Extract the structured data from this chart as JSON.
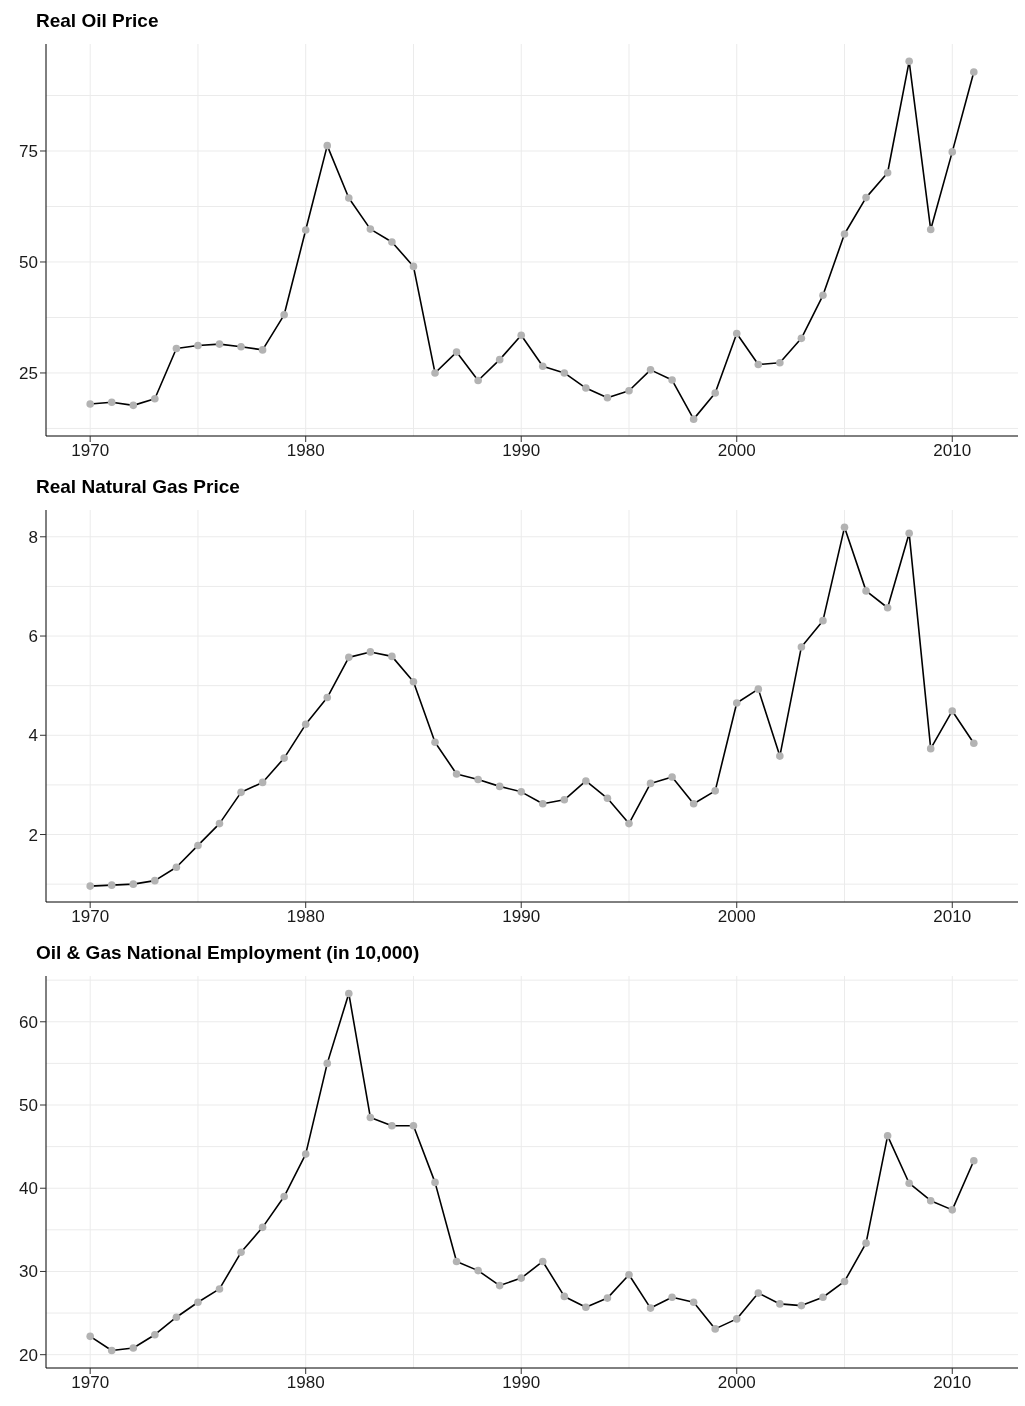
{
  "chart_data": [
    {
      "type": "line",
      "title": "Real Oil Price",
      "x": [
        1970,
        1971,
        1972,
        1973,
        1974,
        1975,
        1976,
        1977,
        1978,
        1979,
        1980,
        1981,
        1982,
        1983,
        1984,
        1985,
        1986,
        1987,
        1988,
        1989,
        1990,
        1991,
        1992,
        1993,
        1994,
        1995,
        1996,
        1997,
        1998,
        1999,
        2000,
        2001,
        2002,
        2003,
        2004,
        2005,
        2006,
        2007,
        2008,
        2009,
        2010,
        2011
      ],
      "values": [
        18.0,
        18.4,
        17.7,
        19.2,
        30.5,
        31.2,
        31.5,
        30.9,
        30.2,
        38.1,
        57.2,
        76.2,
        64.4,
        57.4,
        54.5,
        49.0,
        25.0,
        29.7,
        23.3,
        28.0,
        33.5,
        26.5,
        25.0,
        21.6,
        19.4,
        21.0,
        25.7,
        23.4,
        14.6,
        20.5,
        33.9,
        26.9,
        27.3,
        32.8,
        42.5,
        56.3,
        64.5,
        70.1,
        95.2,
        57.3,
        74.8,
        92.8
      ],
      "color": "#000000",
      "marker": "circle",
      "line_style": "solid",
      "grid": true,
      "xlim": [
        1967.95,
        2013.05
      ],
      "xticks": [
        1970,
        1980,
        1990,
        2000,
        2010
      ],
      "ylim": [
        10.8,
        99.1
      ],
      "yticks": [
        25,
        50,
        75
      ]
    },
    {
      "type": "line",
      "title": "Real Natural Gas Price",
      "x": [
        1970,
        1971,
        1972,
        1973,
        1974,
        1975,
        1976,
        1977,
        1978,
        1979,
        1980,
        1981,
        1982,
        1983,
        1984,
        1985,
        1986,
        1987,
        1988,
        1989,
        1990,
        1991,
        1992,
        1993,
        1994,
        1995,
        1996,
        1997,
        1998,
        1999,
        2000,
        2001,
        2002,
        2003,
        2004,
        2005,
        2006,
        2007,
        2008,
        2009,
        2010,
        2011
      ],
      "values": [
        0.96,
        0.98,
        1.0,
        1.07,
        1.34,
        1.78,
        2.22,
        2.85,
        3.05,
        3.54,
        4.22,
        4.76,
        5.57,
        5.68,
        5.59,
        5.08,
        3.86,
        3.22,
        3.11,
        2.97,
        2.86,
        2.62,
        2.7,
        3.08,
        2.73,
        2.22,
        3.03,
        3.16,
        2.62,
        2.88,
        4.65,
        4.93,
        3.58,
        5.78,
        6.31,
        8.19,
        6.91,
        6.57,
        8.07,
        3.73,
        4.49,
        3.84
      ],
      "color": "#000000",
      "marker": "circle",
      "line_style": "solid",
      "grid": true,
      "xlim": [
        1967.95,
        2013.05
      ],
      "xticks": [
        1970,
        1980,
        1990,
        2000,
        2010
      ],
      "ylim": [
        0.64,
        8.54
      ],
      "yticks": [
        2,
        4,
        6,
        8
      ]
    },
    {
      "type": "line",
      "title": "Oil & Gas National Employment (in 10,000)",
      "x": [
        1970,
        1971,
        1972,
        1973,
        1974,
        1975,
        1976,
        1977,
        1978,
        1979,
        1980,
        1981,
        1982,
        1983,
        1984,
        1985,
        1986,
        1987,
        1988,
        1989,
        1990,
        1991,
        1992,
        1993,
        1994,
        1995,
        1996,
        1997,
        1998,
        1999,
        2000,
        2001,
        2002,
        2003,
        2004,
        2005,
        2006,
        2007,
        2008,
        2009,
        2010,
        2011
      ],
      "values": [
        22.2,
        20.5,
        20.8,
        22.4,
        24.5,
        26.3,
        27.9,
        32.3,
        35.3,
        39.0,
        44.1,
        55.0,
        63.4,
        48.5,
        47.5,
        47.5,
        40.7,
        31.2,
        30.1,
        28.3,
        29.2,
        31.2,
        27.0,
        25.7,
        26.8,
        29.6,
        25.6,
        26.9,
        26.3,
        23.1,
        24.3,
        27.4,
        26.1,
        25.9,
        26.9,
        28.8,
        33.4,
        46.3,
        40.6,
        38.5,
        37.4,
        43.3
      ],
      "color": "#000000",
      "marker": "circle",
      "line_style": "solid",
      "grid": true,
      "xlim": [
        1967.95,
        2013.05
      ],
      "xticks": [
        1970,
        1980,
        1990,
        2000,
        2010
      ],
      "ylim": [
        18.4,
        65.5
      ],
      "yticks": [
        20,
        30,
        40,
        50,
        60
      ]
    }
  ]
}
